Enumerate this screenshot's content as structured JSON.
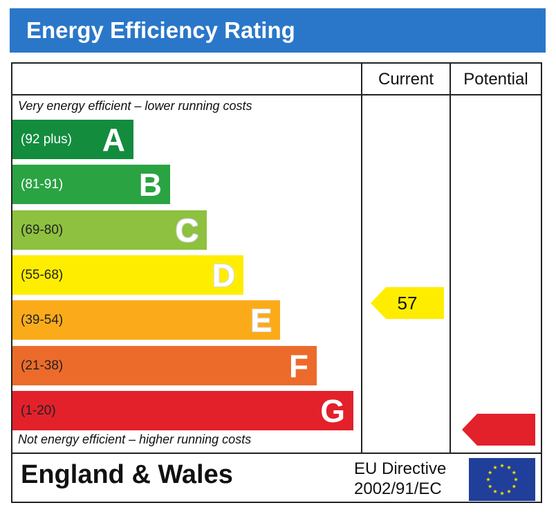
{
  "title": "Energy Efficiency Rating",
  "columns": {
    "current": "Current",
    "potential": "Potential"
  },
  "captions": {
    "top": "Very energy efficient – lower running costs",
    "bottom": "Not energy efficient – higher running costs"
  },
  "footer": {
    "region": "England & Wales",
    "directive_line1": "EU Directive",
    "directive_line2": "2002/91/EC"
  },
  "chart_data": {
    "type": "bar",
    "title": "Energy Efficiency Rating",
    "categories": [
      "A",
      "B",
      "C",
      "D",
      "E",
      "F",
      "G"
    ],
    "ranges": [
      "(92 plus)",
      "(81-91)",
      "(69-80)",
      "(55-68)",
      "(39-54)",
      "(21-38)",
      "(1-20)"
    ],
    "colors": [
      "#138c3e",
      "#2aa343",
      "#8dc13f",
      "#ffed00",
      "#fbab1a",
      "#ec6b2a",
      "#e2212b"
    ],
    "current": {
      "value": 57,
      "band": "D",
      "color": "#ffed00"
    },
    "potential": {
      "value": null,
      "band": "G",
      "color": "#e2212b"
    }
  }
}
